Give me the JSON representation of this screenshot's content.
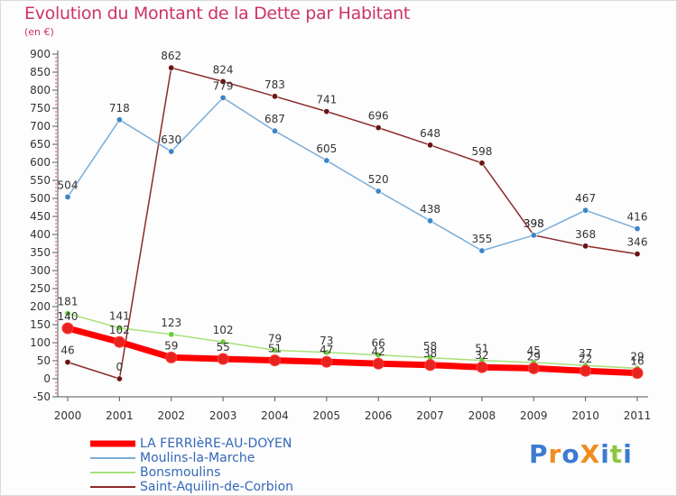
{
  "title": "Evolution du Montant de la Dette par Habitant",
  "subtitle": "(en €)",
  "logo": {
    "text": "ProXiti",
    "letters": [
      {
        "ch": "P",
        "color": "#3c7bd1"
      },
      {
        "ch": "r",
        "color": "#f28c1f"
      },
      {
        "ch": "o",
        "color": "#3c7bd1"
      },
      {
        "ch": "X",
        "color": "#f28c1f"
      },
      {
        "ch": "i",
        "color": "#3c7bd1"
      },
      {
        "ch": "t",
        "color": "#8cc63f"
      },
      {
        "ch": "i",
        "color": "#3c7bd1"
      }
    ]
  },
  "chart_data": {
    "type": "line",
    "title": "Evolution du Montant de la Dette par Habitant",
    "subtitle": "(en €)",
    "x": [
      "2000",
      "2001",
      "2002",
      "2003",
      "2004",
      "2005",
      "2006",
      "2007",
      "2008",
      "2009",
      "2010",
      "2011"
    ],
    "ylim": [
      -50,
      900
    ],
    "yticks": [
      -50,
      0,
      50,
      100,
      150,
      200,
      250,
      300,
      350,
      400,
      450,
      500,
      550,
      600,
      650,
      700,
      750,
      800,
      850,
      900
    ],
    "grid": false,
    "legend_position": "bottom-left",
    "series": [
      {
        "name": "LA FERRIèRE-AU-DOYEN",
        "color": "#ff0000",
        "marker_color": "#e8231f",
        "width": 7,
        "values": [
          140,
          102,
          59,
          55,
          51,
          47,
          42,
          38,
          32,
          29,
          22,
          16
        ],
        "labels": [
          "140",
          "102",
          "59",
          "55",
          "51",
          "47",
          "42",
          "38",
          "32",
          "29",
          "22",
          "16"
        ]
      },
      {
        "name": "Moulins-la-Marche",
        "color": "#7aadd8",
        "marker_color": "#3a86c8",
        "width": 1.5,
        "values": [
          504,
          718,
          630,
          779,
          687,
          605,
          520,
          438,
          355,
          398,
          467,
          416
        ],
        "labels": [
          "504",
          "718",
          "630",
          "779",
          "687",
          "605",
          "520",
          "438",
          "355",
          "398",
          "467",
          "416"
        ]
      },
      {
        "name": "Bonsmoulins",
        "color": "#a8e07a",
        "marker_color": "#6ccc3c",
        "width": 1.5,
        "values": [
          181,
          141,
          123,
          102,
          79,
          73,
          66,
          58,
          51,
          45,
          37,
          29
        ],
        "labels": [
          "181",
          "141",
          "123",
          "102",
          "79",
          "73",
          "66",
          "58",
          "51",
          "45",
          "37",
          "29"
        ]
      },
      {
        "name": "Saint-Aquilin-de-Corbion",
        "color": "#8b2a2a",
        "marker_color": "#6b1414",
        "width": 1.5,
        "values": [
          46,
          0,
          862,
          824,
          783,
          741,
          696,
          648,
          598,
          398,
          368,
          346
        ],
        "labels": [
          "46",
          "0",
          "862",
          "824",
          "783",
          "741",
          "696",
          "648",
          "598",
          "398",
          "368",
          "346"
        ]
      }
    ]
  }
}
